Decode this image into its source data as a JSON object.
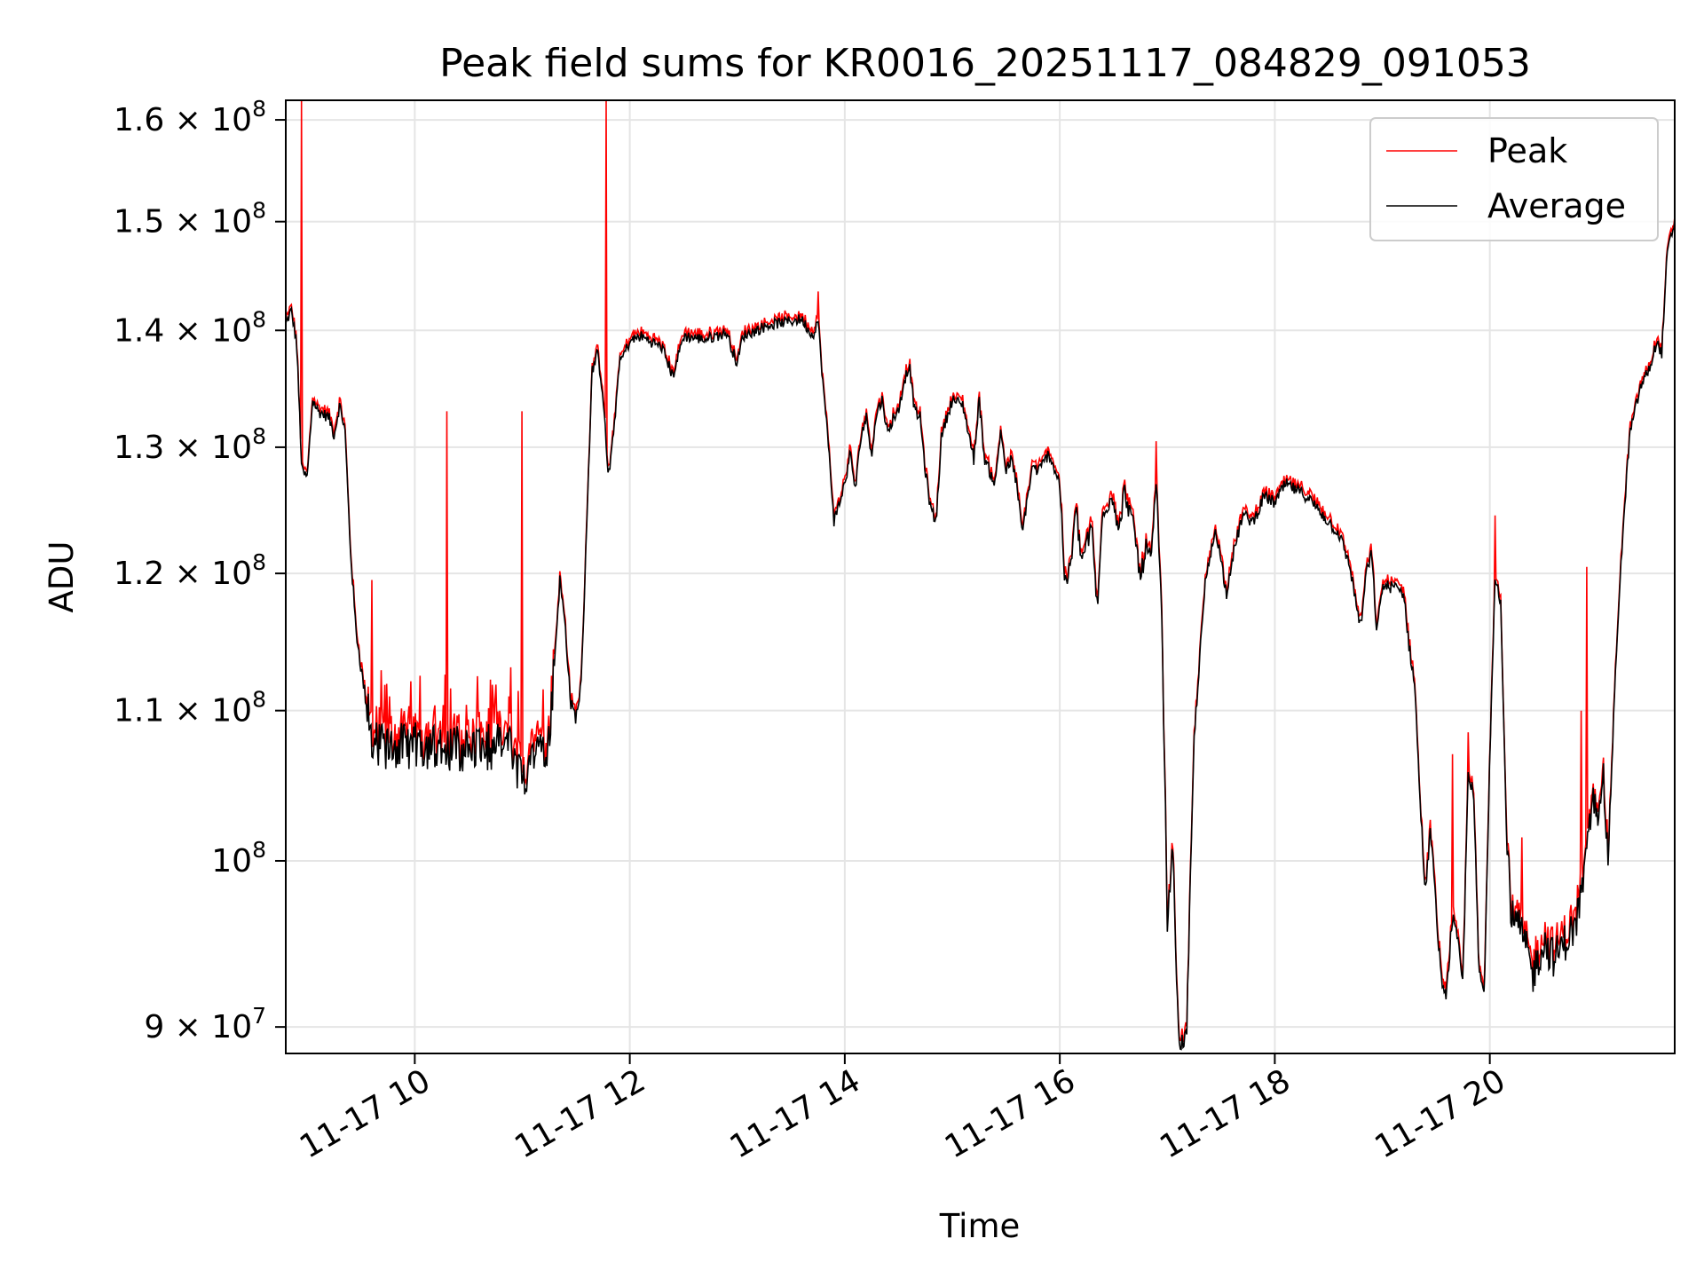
{
  "chart_data": {
    "type": "line",
    "title": "Peak field sums for KR0016_20251117_084829_091053",
    "xlabel": "Time",
    "ylabel": "ADU",
    "yscale": "log",
    "grid": true,
    "legend_position": "top-right",
    "x_unit": "hours (11-17)",
    "xlim": [
      8.8,
      21.72
    ],
    "ylim": [
      88500000,
      162000000
    ],
    "x_ticks": [
      {
        "value": 10,
        "label": "11-17 10"
      },
      {
        "value": 12,
        "label": "11-17 12"
      },
      {
        "value": 14,
        "label": "11-17 14"
      },
      {
        "value": 16,
        "label": "11-17 16"
      },
      {
        "value": 18,
        "label": "11-17 18"
      },
      {
        "value": 20,
        "label": "11-17 20"
      }
    ],
    "y_ticks": [
      {
        "value": 90000000,
        "mantissa": "9 × 10",
        "exp": "7"
      },
      {
        "value": 100000000,
        "mantissa": "10",
        "exp": "8"
      },
      {
        "value": 110000000,
        "mantissa": "1.1 × 10",
        "exp": "8"
      },
      {
        "value": 120000000,
        "mantissa": "1.2 × 10",
        "exp": "8"
      },
      {
        "value": 130000000,
        "mantissa": "1.3 × 10",
        "exp": "8"
      },
      {
        "value": 140000000,
        "mantissa": "1.4 × 10",
        "exp": "8"
      },
      {
        "value": 150000000,
        "mantissa": "1.5 × 10",
        "exp": "8"
      },
      {
        "value": 160000000,
        "mantissa": "1.6 × 10",
        "exp": "8"
      }
    ],
    "series": [
      {
        "name": "Peak",
        "color": "#ff0000"
      },
      {
        "name": "Average",
        "color": "#000000"
      }
    ],
    "average_keypoints": [
      [
        8.8,
        140.5
      ],
      [
        8.85,
        141.8
      ],
      [
        8.9,
        139.0
      ],
      [
        8.95,
        128.0
      ],
      [
        9.0,
        127.5
      ],
      [
        9.05,
        134.0
      ],
      [
        9.1,
        133.0
      ],
      [
        9.2,
        132.5
      ],
      [
        9.25,
        131.0
      ],
      [
        9.3,
        133.5
      ],
      [
        9.35,
        131.5
      ],
      [
        9.4,
        122.0
      ],
      [
        9.45,
        116.0
      ],
      [
        9.5,
        113.0
      ],
      [
        9.55,
        110.5
      ],
      [
        9.6,
        108.0
      ],
      [
        9.7,
        107.5
      ],
      [
        10.0,
        107.6
      ],
      [
        10.5,
        107.4
      ],
      [
        10.9,
        107.6
      ],
      [
        11.0,
        105.0
      ],
      [
        11.1,
        107.5
      ],
      [
        11.25,
        107.8
      ],
      [
        11.35,
        119.5
      ],
      [
        11.4,
        116.0
      ],
      [
        11.45,
        110.5
      ],
      [
        11.5,
        109.5
      ],
      [
        11.55,
        112.0
      ],
      [
        11.6,
        124.0
      ],
      [
        11.65,
        136.5
      ],
      [
        11.7,
        138.0
      ],
      [
        11.75,
        134.5
      ],
      [
        11.8,
        127.5
      ],
      [
        11.85,
        131.0
      ],
      [
        11.9,
        137.0
      ],
      [
        12.0,
        139.0
      ],
      [
        12.1,
        139.5
      ],
      [
        12.3,
        138.5
      ],
      [
        12.4,
        136.0
      ],
      [
        12.5,
        139.5
      ],
      [
        12.7,
        139.2
      ],
      [
        12.9,
        139.8
      ],
      [
        13.0,
        137.0
      ],
      [
        13.05,
        139.5
      ],
      [
        13.3,
        140.5
      ],
      [
        13.6,
        141.0
      ],
      [
        13.7,
        139.5
      ],
      [
        13.75,
        141.0
      ],
      [
        13.8,
        135.0
      ],
      [
        13.85,
        130.0
      ],
      [
        13.9,
        124.0
      ],
      [
        14.0,
        127.0
      ],
      [
        14.05,
        129.5
      ],
      [
        14.1,
        126.5
      ],
      [
        14.15,
        131.0
      ],
      [
        14.2,
        132.5
      ],
      [
        14.25,
        129.5
      ],
      [
        14.3,
        133.0
      ],
      [
        14.35,
        134.0
      ],
      [
        14.4,
        131.0
      ],
      [
        14.45,
        132.5
      ],
      [
        14.5,
        133.0
      ],
      [
        14.55,
        135.5
      ],
      [
        14.6,
        137.0
      ],
      [
        14.65,
        133.0
      ],
      [
        14.7,
        132.5
      ],
      [
        14.75,
        128.0
      ],
      [
        14.8,
        125.0
      ],
      [
        14.85,
        124.0
      ],
      [
        14.9,
        131.0
      ],
      [
        15.0,
        134.0
      ],
      [
        15.1,
        133.5
      ],
      [
        15.2,
        129.0
      ],
      [
        15.25,
        134.0
      ],
      [
        15.3,
        129.0
      ],
      [
        15.4,
        127.0
      ],
      [
        15.45,
        131.5
      ],
      [
        15.5,
        128.0
      ],
      [
        15.55,
        129.0
      ],
      [
        15.6,
        127.0
      ],
      [
        15.65,
        123.0
      ],
      [
        15.7,
        126.0
      ],
      [
        15.75,
        128.5
      ],
      [
        15.8,
        128.0
      ],
      [
        15.9,
        129.5
      ],
      [
        16.0,
        127.0
      ],
      [
        16.05,
        119.0
      ],
      [
        16.1,
        120.5
      ],
      [
        16.15,
        125.0
      ],
      [
        16.2,
        121.0
      ],
      [
        16.3,
        123.5
      ],
      [
        16.35,
        117.0
      ],
      [
        16.4,
        125.0
      ],
      [
        16.5,
        126.0
      ],
      [
        16.55,
        123.0
      ],
      [
        16.6,
        126.5
      ],
      [
        16.7,
        123.0
      ],
      [
        16.75,
        119.5
      ],
      [
        16.8,
        122.0
      ],
      [
        16.85,
        121.0
      ],
      [
        16.9,
        127.0
      ],
      [
        16.95,
        116.0
      ],
      [
        17.0,
        96.0
      ],
      [
        17.05,
        101.0
      ],
      [
        17.1,
        90.0
      ],
      [
        17.12,
        89.0
      ],
      [
        17.18,
        89.5
      ],
      [
        17.25,
        108.0
      ],
      [
        17.35,
        119.0
      ],
      [
        17.45,
        123.5
      ],
      [
        17.55,
        118.5
      ],
      [
        17.6,
        121.0
      ],
      [
        17.7,
        124.5
      ],
      [
        17.8,
        124.0
      ],
      [
        17.9,
        126.0
      ],
      [
        18.0,
        125.5
      ],
      [
        18.1,
        127.0
      ],
      [
        18.2,
        126.5
      ],
      [
        18.3,
        126.0
      ],
      [
        18.4,
        125.0
      ],
      [
        18.5,
        124.0
      ],
      [
        18.6,
        123.0
      ],
      [
        18.7,
        120.5
      ],
      [
        18.75,
        118.0
      ],
      [
        18.8,
        116.0
      ],
      [
        18.85,
        120.0
      ],
      [
        18.9,
        121.5
      ],
      [
        18.95,
        115.5
      ],
      [
        19.0,
        119.0
      ],
      [
        19.1,
        119.0
      ],
      [
        19.2,
        118.5
      ],
      [
        19.25,
        114.5
      ],
      [
        19.3,
        112.0
      ],
      [
        19.35,
        104.0
      ],
      [
        19.4,
        98.0
      ],
      [
        19.45,
        102.0
      ],
      [
        19.5,
        97.0
      ],
      [
        19.55,
        92.5
      ],
      [
        19.6,
        92.0
      ],
      [
        19.65,
        96.5
      ],
      [
        19.7,
        95.0
      ],
      [
        19.75,
        92.5
      ],
      [
        19.8,
        106.0
      ],
      [
        19.85,
        104.0
      ],
      [
        19.9,
        93.0
      ],
      [
        19.95,
        92.0
      ],
      [
        20.0,
        107.0
      ],
      [
        20.05,
        120.0
      ],
      [
        20.1,
        118.0
      ],
      [
        20.15,
        103.0
      ],
      [
        20.2,
        96.5
      ],
      [
        20.3,
        95.5
      ],
      [
        20.4,
        93.0
      ],
      [
        20.5,
        95.0
      ],
      [
        20.6,
        94.0
      ],
      [
        20.7,
        95.0
      ],
      [
        20.8,
        96.0
      ],
      [
        20.9,
        100.0
      ],
      [
        20.95,
        104.0
      ],
      [
        21.0,
        103.0
      ],
      [
        21.05,
        106.0
      ],
      [
        21.1,
        100.0
      ],
      [
        21.2,
        118.0
      ],
      [
        21.3,
        131.0
      ],
      [
        21.4,
        135.0
      ],
      [
        21.5,
        137.0
      ],
      [
        21.55,
        139.0
      ],
      [
        21.6,
        138.0
      ],
      [
        21.65,
        147.0
      ],
      [
        21.72,
        150.0
      ]
    ],
    "peak_spikes": [
      [
        8.95,
        162.0
      ],
      [
        9.6,
        119.5
      ],
      [
        10.3,
        133.0
      ],
      [
        11.0,
        133.0
      ],
      [
        11.78,
        162.0
      ],
      [
        13.75,
        143.5
      ],
      [
        16.9,
        130.5
      ],
      [
        19.65,
        107.0
      ],
      [
        19.8,
        108.5
      ],
      [
        20.05,
        124.5
      ],
      [
        20.3,
        101.5
      ],
      [
        20.85,
        110.0
      ],
      [
        20.9,
        120.5
      ]
    ]
  }
}
